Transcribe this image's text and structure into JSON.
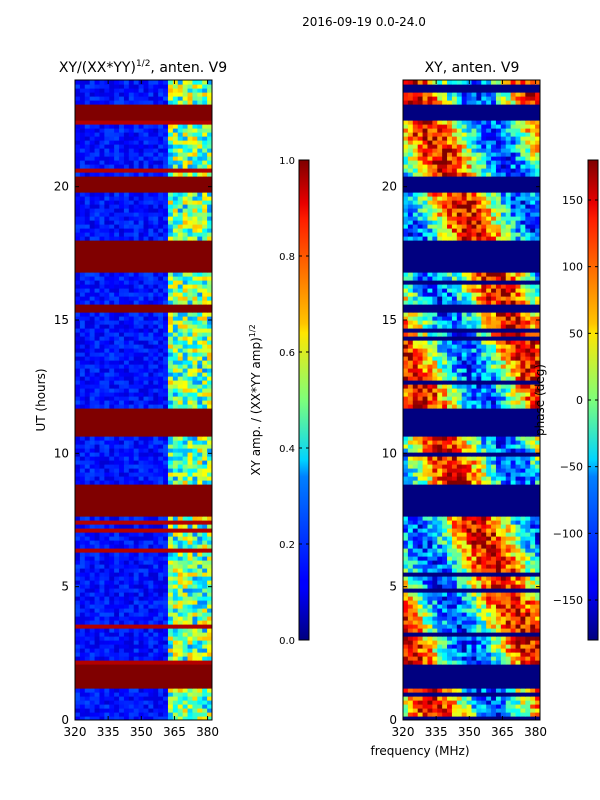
{
  "chart_data": [
    {
      "type": "heatmap",
      "panel": "left",
      "title_prefix": "XY/(XX*YY)",
      "title_exp": "1/2",
      "title_suffix": ", anten. V9",
      "xlabel": "",
      "ylabel": "UT (hours)",
      "xlim": [
        320,
        382
      ],
      "ylim": [
        0,
        24
      ],
      "xticks": [
        320,
        335,
        350,
        365,
        380
      ],
      "yticks": [
        0,
        5,
        10,
        15,
        20
      ],
      "colorbar": {
        "label_main": "XY amp. / (XX*YY amp)",
        "label_exp": "1/2",
        "range": [
          0.0,
          1.0
        ],
        "ticks": [
          "0.0",
          "0.2",
          "0.4",
          "0.6",
          "0.8",
          "1.0"
        ],
        "tick_values": [
          0.0,
          0.2,
          0.4,
          0.6,
          0.8,
          1.0
        ]
      },
      "flagged_ut_ranges": [
        [
          1.1,
          2.0
        ],
        [
          7.6,
          8.8
        ],
        [
          10.6,
          11.6
        ],
        [
          15.2,
          15.5
        ],
        [
          16.8,
          17.9
        ],
        [
          19.8,
          20.3
        ],
        [
          22.4,
          23.0
        ]
      ]
    },
    {
      "type": "heatmap",
      "panel": "right",
      "title": "XY, anten. V9",
      "xlabel": "frequency (MHz)",
      "ylabel": "",
      "xlim": [
        320,
        382
      ],
      "ylim": [
        0,
        24
      ],
      "xticks": [
        320,
        335,
        350,
        365,
        380
      ],
      "yticks": [
        0,
        5,
        10,
        15,
        20
      ],
      "colorbar": {
        "label_main": "phase (deg)",
        "range": [
          -180,
          180
        ],
        "ticks": [
          "−150",
          "−100",
          "−50",
          "0",
          "50",
          "100",
          "150"
        ],
        "tick_values": [
          -150,
          -100,
          -50,
          0,
          50,
          100,
          150
        ]
      },
      "flagged_ut_ranges": [
        [
          1.1,
          2.0
        ],
        [
          7.6,
          8.8
        ],
        [
          10.6,
          11.6
        ],
        [
          15.2,
          15.5
        ],
        [
          16.8,
          17.9
        ],
        [
          19.8,
          20.3
        ],
        [
          22.4,
          23.0
        ]
      ]
    }
  ],
  "suptitle": "2016-09-19 0.0-24.0"
}
